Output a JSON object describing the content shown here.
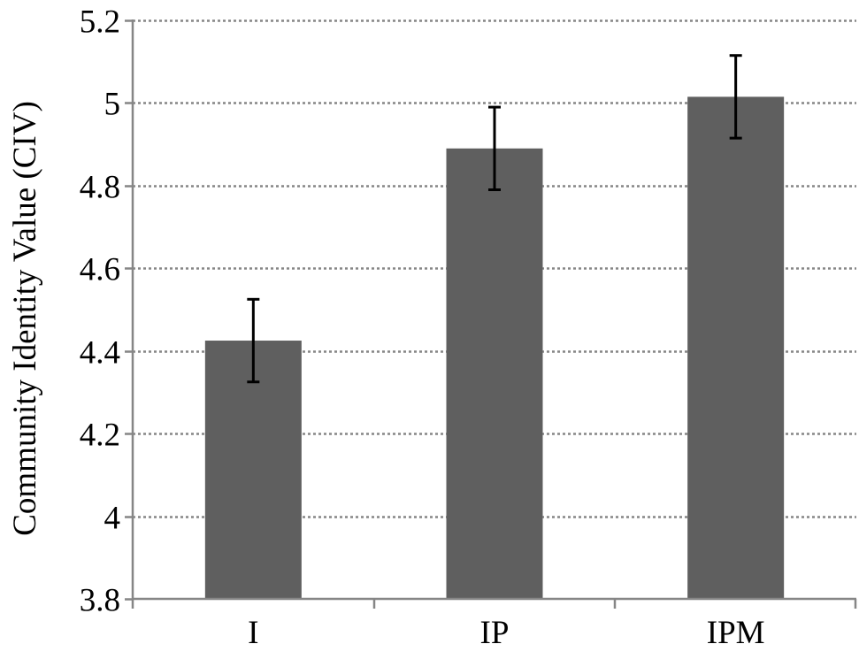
{
  "chart_data": {
    "type": "bar",
    "title": "",
    "xlabel": "",
    "ylabel": "Community Identity Value (CIV)",
    "categories": [
      "I",
      "IP",
      "IPM"
    ],
    "series": [
      {
        "values": [
          4.425,
          4.89,
          5.015
        ],
        "error": [
          0.1,
          0.1,
          0.1
        ]
      }
    ],
    "ylim": [
      3.8,
      5.2
    ],
    "yticks": [
      3.8,
      4,
      4.2,
      4.4,
      4.6,
      4.8,
      5,
      5.2
    ],
    "ytick_labels": [
      "3.8",
      "4",
      "4.2",
      "4.4",
      "4.6",
      "4.8",
      "5",
      "5.2"
    ],
    "grid": "horizontal-dotted",
    "legend": "none",
    "colors": {
      "bar": "#5f5f5f",
      "error_bar": "#000000",
      "axis": "#868686",
      "grid": "#868686"
    }
  }
}
